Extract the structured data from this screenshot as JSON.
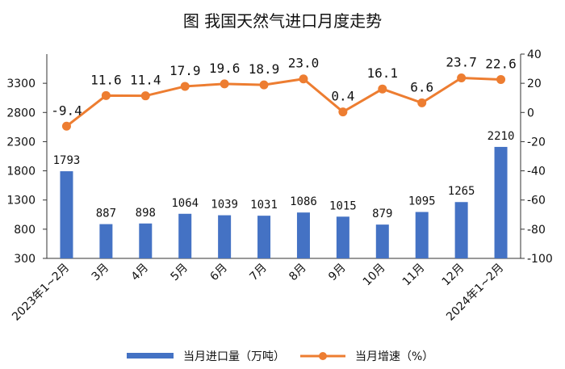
{
  "chart_data": {
    "type": "bar",
    "title": "图  我国天然气进口月度走势",
    "categories": [
      "2023年1~2月",
      "3月",
      "4月",
      "5月",
      "6月",
      "7月",
      "8月",
      "9月",
      "10月",
      "11月",
      "12月",
      "2024年1~2月"
    ],
    "series": [
      {
        "name": "当月进口量（万吨）",
        "type": "bar",
        "axis": "left",
        "color": "#4472C4",
        "values": [
          1793,
          887,
          898,
          1064,
          1039,
          1031,
          1086,
          1015,
          879,
          1095,
          1265,
          2210
        ],
        "labels": [
          "1793",
          "887",
          "898",
          "1064",
          "1039",
          "1031",
          "1086",
          "1015",
          "879",
          "1095",
          "1265",
          "2210"
        ]
      },
      {
        "name": "当月增速（%）",
        "type": "line",
        "axis": "right",
        "color": "#ED7D31",
        "values": [
          -9.4,
          11.6,
          11.4,
          17.9,
          19.6,
          18.9,
          23.0,
          0.4,
          16.1,
          6.6,
          23.7,
          22.6
        ],
        "labels": [
          "-9.4",
          "11.6",
          "11.4",
          "17.9",
          "19.6",
          "18.9",
          "23.0",
          "0.4",
          "16.1",
          "6.6",
          "23.7",
          "22.6"
        ]
      }
    ],
    "y_left": {
      "lim": [
        300,
        3800
      ],
      "ticks": [
        "300",
        "800",
        "1300",
        "1800",
        "2300",
        "2800",
        "3300"
      ]
    },
    "y_right": {
      "lim": [
        -100,
        40
      ],
      "ticks": [
        "-100",
        "-80",
        "-60",
        "-40",
        "-20",
        "0",
        "20",
        "40"
      ]
    },
    "grid": false,
    "legend": "bottom"
  }
}
